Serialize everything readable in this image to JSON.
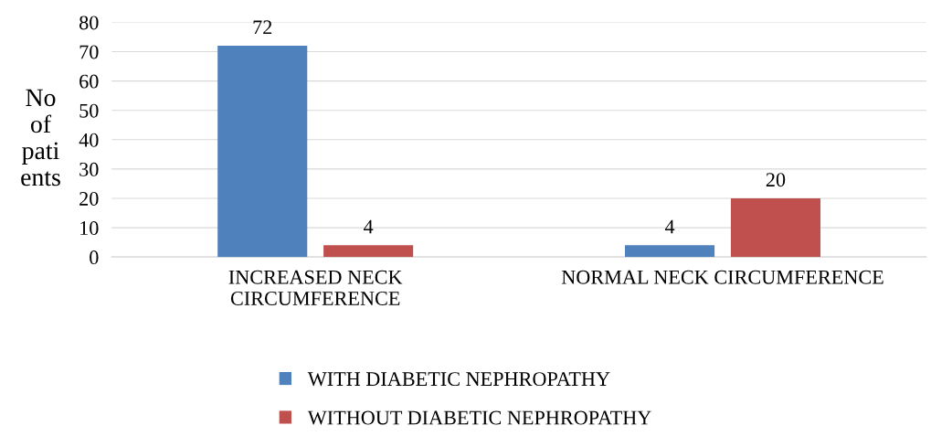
{
  "chart_data": {
    "type": "bar",
    "ylabel": "No\nof\npati\nents",
    "categories": [
      "INCREASED NECK\nCIRCUMFERENCE",
      "NORMAL NECK CIRCUMFERENCE"
    ],
    "series": [
      {
        "name": "WITH DIABETIC NEPHROPATHY",
        "color": "#4f81bd",
        "values": [
          72,
          4
        ]
      },
      {
        "name": "WITHOUT DIABETIC NEPHROPATHY",
        "color": "#c0504d",
        "values": [
          4,
          20
        ]
      }
    ],
    "ylim": [
      0,
      80
    ],
    "yticks": [
      0,
      10,
      20,
      30,
      40,
      50,
      60,
      70,
      80
    ],
    "grid": "y",
    "legend": "bottom",
    "data_labels": true
  }
}
